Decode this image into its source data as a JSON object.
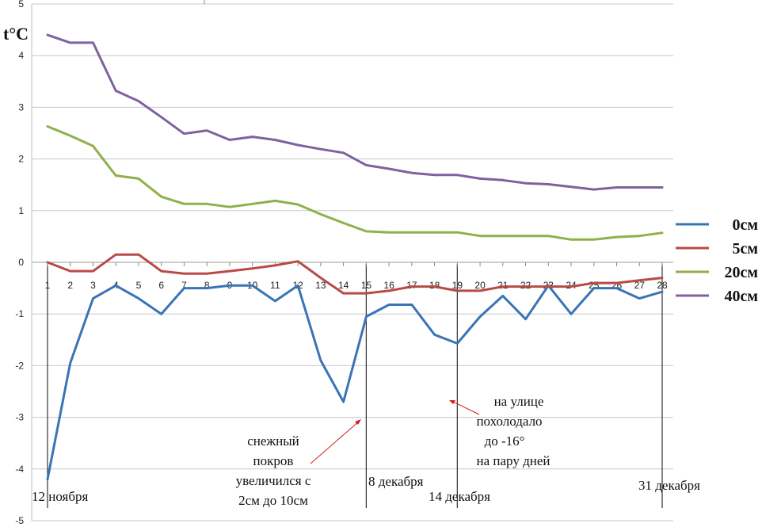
{
  "chart_data": {
    "type": "line",
    "ylabel": "t°C",
    "ylim": [
      -5,
      5
    ],
    "yticks": [
      "5",
      "4",
      "3",
      "2",
      "1",
      "0",
      "-1",
      "-2",
      "-3",
      "-4",
      "-5"
    ],
    "categories": [
      "1",
      "2",
      "3",
      "4",
      "5",
      "6",
      "7",
      "8",
      "9",
      "10",
      "11",
      "12",
      "13",
      "14",
      "15",
      "16",
      "17",
      "18",
      "19",
      "20",
      "21",
      "22",
      "23",
      "24",
      "25",
      "26",
      "27",
      "28"
    ],
    "grid": true,
    "legend_position": "right",
    "series": [
      {
        "name": "0см",
        "color": "#3a74b6",
        "values": [
          -4.2,
          -1.95,
          -0.7,
          -0.45,
          -0.7,
          -1.0,
          -0.5,
          -0.5,
          -0.45,
          -0.45,
          -0.75,
          -0.45,
          -1.9,
          -2.7,
          -1.05,
          -0.82,
          -0.82,
          -1.4,
          -1.57,
          -1.05,
          -0.65,
          -1.1,
          -0.45,
          -1.0,
          -0.5,
          -0.5,
          -0.7,
          -0.57
        ]
      },
      {
        "name": "5см",
        "color": "#b94a46",
        "values": [
          0.0,
          -0.17,
          -0.17,
          0.15,
          0.15,
          -0.17,
          -0.22,
          -0.22,
          -0.17,
          -0.12,
          -0.06,
          0.02,
          -0.3,
          -0.6,
          -0.6,
          -0.55,
          -0.47,
          -0.47,
          -0.55,
          -0.55,
          -0.47,
          -0.47,
          -0.47,
          -0.47,
          -0.4,
          -0.4,
          -0.35,
          -0.3
        ]
      },
      {
        "name": "20см",
        "color": "#8fb04b",
        "values": [
          2.63,
          2.45,
          2.25,
          1.68,
          1.62,
          1.27,
          1.13,
          1.13,
          1.07,
          1.13,
          1.19,
          1.12,
          0.93,
          0.76,
          0.6,
          0.58,
          0.58,
          0.58,
          0.58,
          0.51,
          0.51,
          0.51,
          0.51,
          0.44,
          0.44,
          0.49,
          0.51,
          0.57
        ]
      },
      {
        "name": "40см",
        "color": "#7e62a0",
        "values": [
          4.4,
          4.25,
          4.25,
          3.32,
          3.12,
          2.81,
          2.49,
          2.55,
          2.37,
          2.43,
          2.37,
          2.27,
          2.19,
          2.12,
          1.88,
          1.81,
          1.73,
          1.69,
          1.69,
          1.62,
          1.59,
          1.53,
          1.51,
          1.46,
          1.41,
          1.45,
          1.45,
          1.45
        ]
      }
    ],
    "date_labels": [
      {
        "text": "12 ноября",
        "at": 1
      },
      {
        "text": "8 декабря",
        "at": 15
      },
      {
        "text": "14 декабря",
        "at": 19
      },
      {
        "text": "31 декабря",
        "at": 28
      }
    ],
    "annotations": [
      {
        "lines": [
          "снежный",
          "покров",
          "увеличился с",
          "2см до 10см"
        ]
      },
      {
        "lines": [
          "на улице",
          "похолодало",
          "до -16°",
          "на пару дней"
        ]
      }
    ]
  }
}
